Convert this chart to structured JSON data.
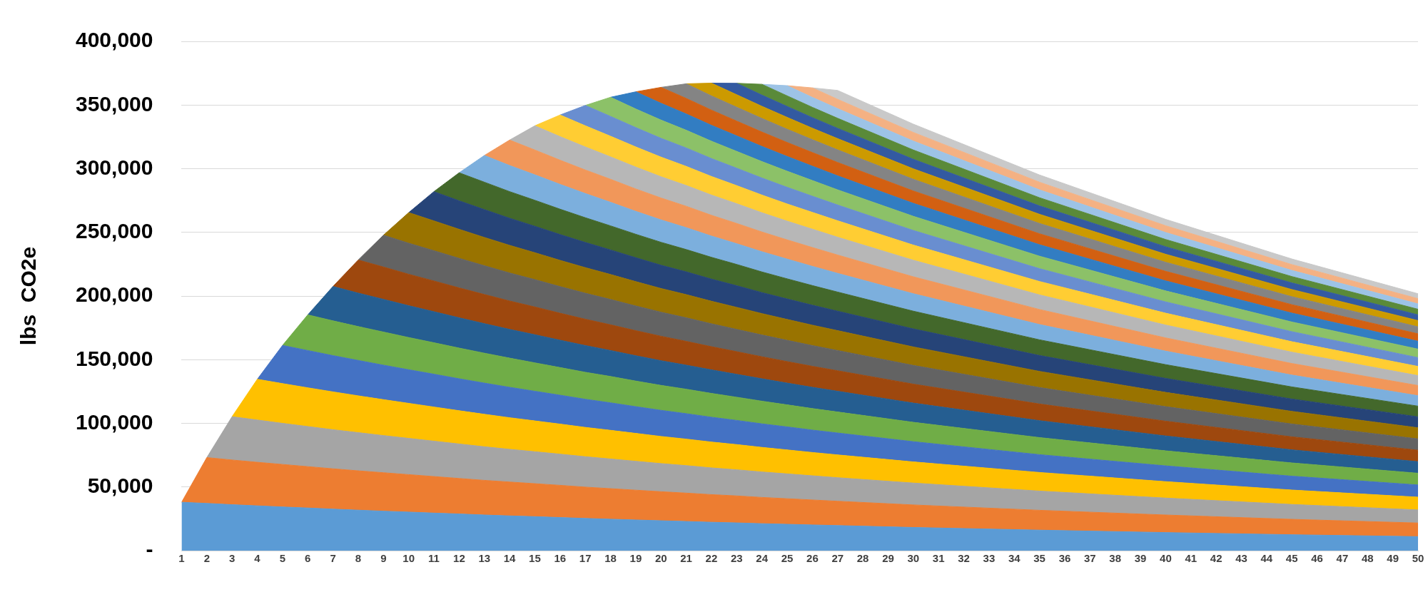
{
  "chart_data": {
    "type": "area",
    "stacked": true,
    "ylabel": "lbs  CO2e",
    "grid": "y",
    "x": [
      1,
      2,
      3,
      4,
      5,
      6,
      7,
      8,
      9,
      10,
      11,
      12,
      13,
      14,
      15,
      16,
      17,
      18,
      19,
      20,
      21,
      22,
      23,
      24,
      25,
      26,
      27,
      30,
      35,
      40,
      45,
      50
    ],
    "xlim": [
      1,
      50
    ],
    "xticks": [
      1,
      2,
      3,
      4,
      5,
      6,
      7,
      8,
      9,
      10,
      11,
      12,
      13,
      14,
      15,
      16,
      17,
      18,
      19,
      20,
      21,
      22,
      23,
      24,
      25,
      26,
      27,
      28,
      29,
      30,
      31,
      32,
      33,
      34,
      35,
      36,
      37,
      38,
      39,
      40,
      41,
      42,
      43,
      44,
      45,
      46,
      47,
      48,
      49,
      50
    ],
    "ylim": [
      0,
      400000
    ],
    "yticks": [
      {
        "value": 0,
        "label": "-"
      },
      {
        "value": 50000,
        "label": "50,000"
      },
      {
        "value": 100000,
        "label": "100,000"
      },
      {
        "value": 150000,
        "label": "150,000"
      },
      {
        "value": 200000,
        "label": "200,000"
      },
      {
        "value": 250000,
        "label": "250,000"
      },
      {
        "value": 300000,
        "label": "300,000"
      },
      {
        "value": 350000,
        "label": "350,000"
      },
      {
        "value": 400000,
        "label": "400,000"
      }
    ],
    "series": [
      {
        "color": "#5b9bd5",
        "values": [
          38000,
          37100,
          36100,
          35200,
          34300,
          33500,
          32600,
          31800,
          31000,
          30300,
          29500,
          28800,
          28000,
          27300,
          26700,
          26000,
          25300,
          24700,
          24100,
          23500,
          22900,
          22300,
          21800,
          21200,
          20700,
          20200,
          19700,
          18200,
          16100,
          14200,
          12500,
          11000
        ]
      },
      {
        "color": "#ed7d31",
        "values": [
          0,
          36000,
          35100,
          34200,
          33400,
          32500,
          31700,
          30900,
          30200,
          29400,
          28700,
          27900,
          27200,
          26600,
          25900,
          25300,
          24600,
          24000,
          23400,
          22800,
          22300,
          21700,
          21200,
          20600,
          20100,
          19600,
          19100,
          17700,
          15600,
          13800,
          12100,
          10700
        ]
      },
      {
        "color": "#a5a5a5",
        "values": [
          null,
          0,
          34000,
          33200,
          32300,
          31500,
          30700,
          30000,
          29200,
          28500,
          27800,
          27100,
          26400,
          25700,
          25100,
          24500,
          23900,
          23300,
          22700,
          22100,
          21600,
          21000,
          20500,
          20000,
          19500,
          19000,
          18500,
          17200,
          15100,
          13300,
          11700,
          10300
        ]
      },
      {
        "color": "#ffc000",
        "values": [
          null,
          null,
          0,
          32000,
          31200,
          30400,
          29700,
          28900,
          28200,
          27500,
          26800,
          26100,
          25500,
          24800,
          24200,
          23600,
          23000,
          22500,
          21900,
          21300,
          20800,
          20300,
          19800,
          19300,
          18800,
          18300,
          17900,
          16600,
          14600,
          12900,
          11300,
          10000
        ]
      },
      {
        "color": "#4472c4",
        "values": [
          null,
          null,
          null,
          0,
          30000,
          29300,
          28500,
          27800,
          27100,
          26400,
          25800,
          25100,
          24500,
          23900,
          23300,
          22700,
          22100,
          21600,
          21000,
          20500,
          20000,
          19500,
          19000,
          18500,
          18100,
          17600,
          17200,
          15900,
          14000,
          12400,
          10900,
          9600
        ]
      },
      {
        "color": "#70ad47",
        "values": [
          null,
          null,
          null,
          null,
          0,
          28000,
          27300,
          26600,
          26000,
          25300,
          24700,
          24100,
          23500,
          22900,
          22300,
          21700,
          21200,
          20700,
          20100,
          19600,
          19200,
          18700,
          18200,
          17800,
          17300,
          16900,
          16500,
          15200,
          13400,
          11800,
          10400,
          9200
        ]
      },
      {
        "color": "#255e91",
        "values": [
          null,
          null,
          null,
          null,
          null,
          0,
          27000,
          26300,
          25700,
          25000,
          24400,
          23800,
          23200,
          22600,
          22100,
          21500,
          21000,
          20400,
          19900,
          19400,
          18900,
          18500,
          18000,
          17600,
          17100,
          16700,
          16300,
          15100,
          13300,
          11700,
          10300,
          9100
        ]
      },
      {
        "color": "#9e480e",
        "values": [
          null,
          null,
          null,
          null,
          null,
          null,
          0,
          26000,
          25400,
          24700,
          24100,
          23500,
          22900,
          22300,
          21800,
          21200,
          20700,
          20200,
          19700,
          19200,
          18700,
          18200,
          17800,
          17300,
          16900,
          16500,
          16100,
          14900,
          13100,
          11600,
          10200,
          9000
        ]
      },
      {
        "color": "#636363",
        "values": [
          null,
          null,
          null,
          null,
          null,
          null,
          null,
          0,
          25000,
          24400,
          23800,
          23200,
          22600,
          22000,
          21500,
          20900,
          20400,
          19900,
          19400,
          18900,
          18500,
          18000,
          17500,
          17100,
          16700,
          16300,
          15900,
          14700,
          12900,
          11400,
          10100,
          8900
        ]
      },
      {
        "color": "#997300",
        "values": [
          null,
          null,
          null,
          null,
          null,
          null,
          null,
          null,
          0,
          24000,
          23400,
          22800,
          22200,
          21700,
          21100,
          20600,
          20100,
          19600,
          19100,
          18600,
          18200,
          17700,
          17300,
          16800,
          16400,
          16000,
          15600,
          14500,
          12700,
          11200,
          9900,
          8700
        ]
      },
      {
        "color": "#264478",
        "values": [
          null,
          null,
          null,
          null,
          null,
          null,
          null,
          null,
          null,
          0,
          23000,
          22400,
          21900,
          21300,
          20800,
          20300,
          19800,
          19300,
          18800,
          18300,
          17900,
          17400,
          17000,
          16500,
          16100,
          15700,
          15300,
          14200,
          12500,
          11000,
          9700,
          8600
        ]
      },
      {
        "color": "#43682b",
        "values": [
          null,
          null,
          null,
          null,
          null,
          null,
          null,
          null,
          null,
          null,
          0,
          22000,
          21500,
          20900,
          20400,
          19900,
          19400,
          18900,
          18400,
          18000,
          17500,
          17100,
          16700,
          16200,
          15800,
          15400,
          15000,
          13900,
          12300,
          10800,
          9500,
          8400
        ]
      },
      {
        "color": "#7cafdd",
        "values": [
          null,
          null,
          null,
          null,
          null,
          null,
          null,
          null,
          null,
          null,
          null,
          0,
          21000,
          20500,
          20000,
          19500,
          19000,
          18500,
          18000,
          17600,
          17200,
          16700,
          16300,
          15900,
          15500,
          15100,
          14700,
          13700,
          12000,
          10600,
          9300,
          8200
        ]
      },
      {
        "color": "#f1975a",
        "values": [
          null,
          null,
          null,
          null,
          null,
          null,
          null,
          null,
          null,
          null,
          null,
          null,
          0,
          20000,
          19500,
          19000,
          18500,
          18100,
          17600,
          17200,
          16800,
          16300,
          15900,
          15500,
          15100,
          14800,
          14400,
          13300,
          11800,
          10400,
          9100,
          8000
        ]
      },
      {
        "color": "#b7b7b7",
        "values": [
          null,
          null,
          null,
          null,
          null,
          null,
          null,
          null,
          null,
          null,
          null,
          null,
          null,
          0,
          19000,
          18500,
          18100,
          17600,
          17200,
          16700,
          16300,
          15900,
          15500,
          15100,
          14700,
          14400,
          14000,
          13000,
          11500,
          10100,
          8900,
          7800
        ]
      },
      {
        "color": "#ffcd33",
        "values": [
          null,
          null,
          null,
          null,
          null,
          null,
          null,
          null,
          null,
          null,
          null,
          null,
          null,
          null,
          0,
          17000,
          16600,
          16200,
          15800,
          15400,
          15000,
          14600,
          14200,
          13900,
          13500,
          13200,
          12900,
          11900,
          10500,
          9300,
          8200,
          7200
        ]
      },
      {
        "color": "#698ed0",
        "values": [
          null,
          null,
          null,
          null,
          null,
          null,
          null,
          null,
          null,
          null,
          null,
          null,
          null,
          null,
          null,
          0,
          16000,
          15600,
          15200,
          14800,
          14500,
          14100,
          13700,
          13400,
          13100,
          12700,
          12400,
          11500,
          10100,
          8900,
          7900,
          6900
        ]
      },
      {
        "color": "#8cc168",
        "values": [
          null,
          null,
          null,
          null,
          null,
          null,
          null,
          null,
          null,
          null,
          null,
          null,
          null,
          null,
          null,
          null,
          0,
          15000,
          14600,
          14300,
          13900,
          13600,
          13200,
          12900,
          12600,
          12300,
          11900,
          11100,
          9800,
          8600,
          7600,
          6700
        ]
      },
      {
        "color": "#327dc2",
        "values": [
          null,
          null,
          null,
          null,
          null,
          null,
          null,
          null,
          null,
          null,
          null,
          null,
          null,
          null,
          null,
          null,
          null,
          0,
          13500,
          13200,
          12800,
          12500,
          12200,
          11900,
          11600,
          11300,
          11000,
          10200,
          9000,
          7900,
          7000,
          6200
        ]
      },
      {
        "color": "#d26012",
        "values": [
          null,
          null,
          null,
          null,
          null,
          null,
          null,
          null,
          null,
          null,
          null,
          null,
          null,
          null,
          null,
          null,
          null,
          null,
          0,
          12500,
          12200,
          11900,
          11600,
          11300,
          11000,
          10700,
          10500,
          9700,
          8600,
          7500,
          6600,
          5800
        ]
      },
      {
        "color": "#848484",
        "values": [
          null,
          null,
          null,
          null,
          null,
          null,
          null,
          null,
          null,
          null,
          null,
          null,
          null,
          null,
          null,
          null,
          null,
          null,
          null,
          0,
          11500,
          11200,
          10900,
          10700,
          10400,
          10100,
          9900,
          9200,
          8100,
          7100,
          6300,
          5500
        ]
      },
      {
        "color": "#cc9a00",
        "values": [
          null,
          null,
          null,
          null,
          null,
          null,
          null,
          null,
          null,
          null,
          null,
          null,
          null,
          null,
          null,
          null,
          null,
          null,
          null,
          null,
          0,
          10000,
          9800,
          9500,
          9300,
          9000,
          8800,
          8200,
          7200,
          6300,
          5600,
          4900
        ]
      },
      {
        "color": "#335aa1",
        "values": [
          null,
          null,
          null,
          null,
          null,
          null,
          null,
          null,
          null,
          null,
          null,
          null,
          null,
          null,
          null,
          null,
          null,
          null,
          null,
          null,
          null,
          0,
          9000,
          8800,
          8600,
          8300,
          8100,
          7500,
          6600,
          5900,
          5200,
          4500
        ]
      },
      {
        "color": "#5a8a39",
        "values": [
          null,
          null,
          null,
          null,
          null,
          null,
          null,
          null,
          null,
          null,
          null,
          null,
          null,
          null,
          null,
          null,
          null,
          null,
          null,
          null,
          null,
          null,
          0,
          8500,
          8300,
          8100,
          7900,
          7300,
          6400,
          5700,
          5000,
          4400
        ]
      },
      {
        "color": "#9dc3e6",
        "values": [
          null,
          null,
          null,
          null,
          null,
          null,
          null,
          null,
          null,
          null,
          null,
          null,
          null,
          null,
          null,
          null,
          null,
          null,
          null,
          null,
          null,
          null,
          null,
          0,
          8000,
          7800,
          7600,
          7000,
          6200,
          5500,
          4800,
          4200
        ]
      },
      {
        "color": "#f4b183",
        "values": [
          null,
          null,
          null,
          null,
          null,
          null,
          null,
          null,
          null,
          null,
          null,
          null,
          null,
          null,
          null,
          null,
          null,
          null,
          null,
          null,
          null,
          null,
          null,
          null,
          0,
          7500,
          7300,
          6800,
          6000,
          5300,
          4600,
          4100
        ]
      },
      {
        "color": "#c9c9c9",
        "values": [
          null,
          null,
          null,
          null,
          null,
          null,
          null,
          null,
          null,
          null,
          null,
          null,
          null,
          null,
          null,
          null,
          null,
          null,
          null,
          null,
          null,
          null,
          null,
          null,
          null,
          0,
          7000,
          6500,
          5700,
          5000,
          4400,
          3900
        ]
      }
    ]
  }
}
